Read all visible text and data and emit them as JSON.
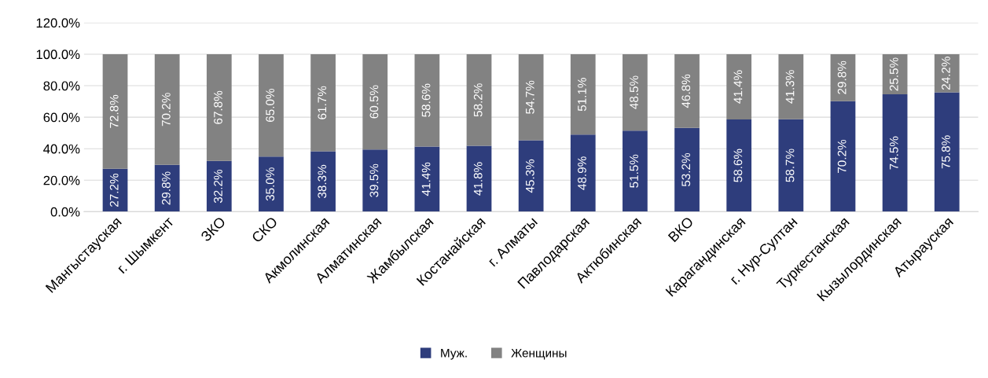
{
  "chart_data": {
    "type": "bar",
    "stacked": true,
    "categories": [
      "Мангыстауская",
      "г. Шымкент",
      "ЗКО",
      "СКО",
      "Акмолинская",
      "Алматинская",
      "Жамбылская",
      "Костанайская",
      "г. Алматы",
      "Павлодарская",
      "Актюбинская",
      "ВКО",
      "Карагандинская",
      "г. Нур-Султан",
      "Туркестанская",
      "Кызылординская",
      "Атырауская"
    ],
    "series": [
      {
        "name": "Муж.",
        "color": "#2e3d7c",
        "values": [
          27.2,
          29.8,
          32.2,
          35.0,
          38.3,
          39.5,
          41.4,
          41.8,
          45.3,
          48.9,
          51.5,
          53.2,
          58.6,
          58.7,
          70.2,
          74.5,
          75.8
        ],
        "value_labels": [
          "27.2%",
          "29.8%",
          "32.2%",
          "35.0%",
          "38.3%",
          "39.5%",
          "41.4%",
          "41.8%",
          "45.3%",
          "48.9%",
          "51.5%",
          "53.2%",
          "58.6%",
          "58.7%",
          "70.2%",
          "74.5%",
          "75.8%"
        ]
      },
      {
        "name": "Женщины",
        "color": "#828282",
        "values": [
          72.8,
          70.2,
          67.8,
          65.0,
          61.7,
          60.5,
          58.6,
          58.2,
          54.7,
          51.1,
          48.5,
          46.8,
          41.4,
          41.3,
          29.8,
          25.5,
          24.2
        ],
        "value_labels": [
          "72.8%",
          "70.2%",
          "67.8%",
          "65.0%",
          "61.7%",
          "60.5%",
          "58.6%",
          "58.2%",
          "54.7%",
          "51.1%",
          "48.5%",
          "46.8%",
          "41.4%",
          "41.3%",
          "29.8%",
          "25.5%",
          "24.2%"
        ]
      }
    ],
    "ylim": [
      0,
      120
    ],
    "yticks": [
      {
        "value": 0,
        "label": "0.0%"
      },
      {
        "value": 20,
        "label": "20.0%"
      },
      {
        "value": 40,
        "label": "40.0%"
      },
      {
        "value": 60,
        "label": "60.0%"
      },
      {
        "value": 80,
        "label": "80.0%"
      },
      {
        "value": 100,
        "label": "100.0%"
      },
      {
        "value": 120,
        "label": "120.0%"
      }
    ],
    "grid": "y",
    "legend": "bottom"
  }
}
